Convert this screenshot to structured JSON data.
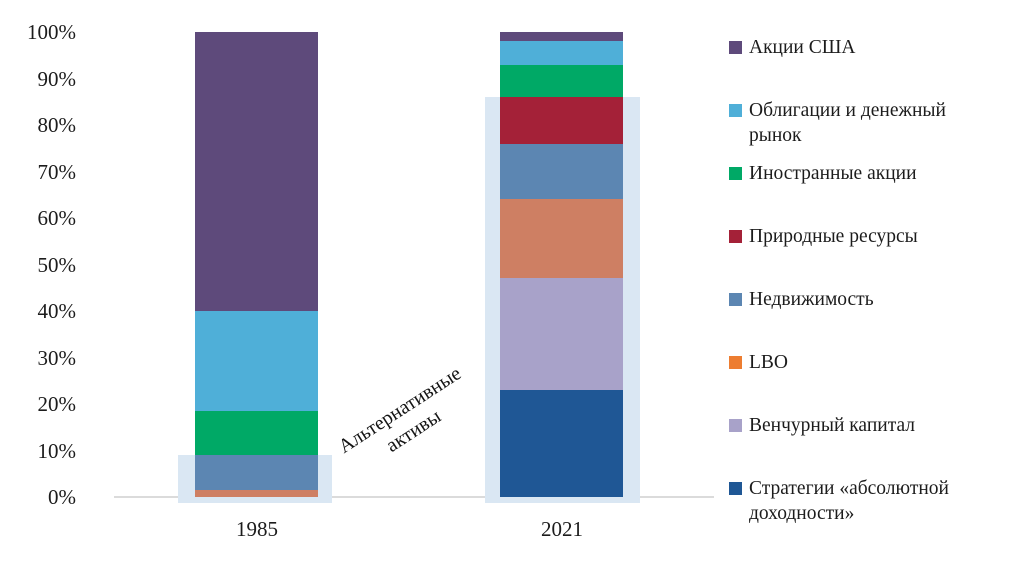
{
  "chart_data": {
    "type": "bar",
    "variant": "stacked-column-100pct",
    "title": "",
    "xlabel": "",
    "ylabel": "",
    "categories": [
      "1985",
      "2021"
    ],
    "series": [
      {
        "name": "Акции США",
        "color": "#5E4A7B",
        "values": [
          60,
          2
        ]
      },
      {
        "name": "Облигации и денежный рынок",
        "color": "#4FAFD8",
        "values": [
          21.5,
          5
        ]
      },
      {
        "name": "Иностранные акции",
        "color": "#00A966",
        "values": [
          9.5,
          7
        ]
      },
      {
        "name": "Природные ресурсы",
        "color": "#A42138",
        "values": [
          0,
          10
        ]
      },
      {
        "name": "Недвижимость",
        "color": "#5C86B2",
        "values": [
          7.5,
          12
        ]
      },
      {
        "name": "LBO",
        "color": "#CE7F63",
        "swatch_color": "#ED7D31",
        "values": [
          1.5,
          17
        ]
      },
      {
        "name": "Венчурный капитал",
        "color": "#A8A2C9",
        "values": [
          0,
          24
        ]
      },
      {
        "name": "Стратегии «абсолютной доходности»",
        "color": "#1F5795",
        "values": [
          0,
          23
        ]
      }
    ],
    "stack_order": "reverse-of-legend (Стратегии at bottom, Акции США on top)",
    "y_ticks": [
      "0%",
      "10%",
      "20%",
      "30%",
      "40%",
      "50%",
      "60%",
      "70%",
      "80%",
      "90%",
      "100%"
    ],
    "ylim": [
      0,
      100
    ],
    "unit": "%",
    "grid": false,
    "legend_position": "right",
    "annotation": {
      "label": "Альтернативные активы",
      "text_lines": [
        "Альтернативные",
        "активы"
      ],
      "rotation_deg": -33
    },
    "alt_highlight": {
      "color": "#DAE7F3",
      "coverage_pct": [
        9,
        86
      ]
    }
  }
}
